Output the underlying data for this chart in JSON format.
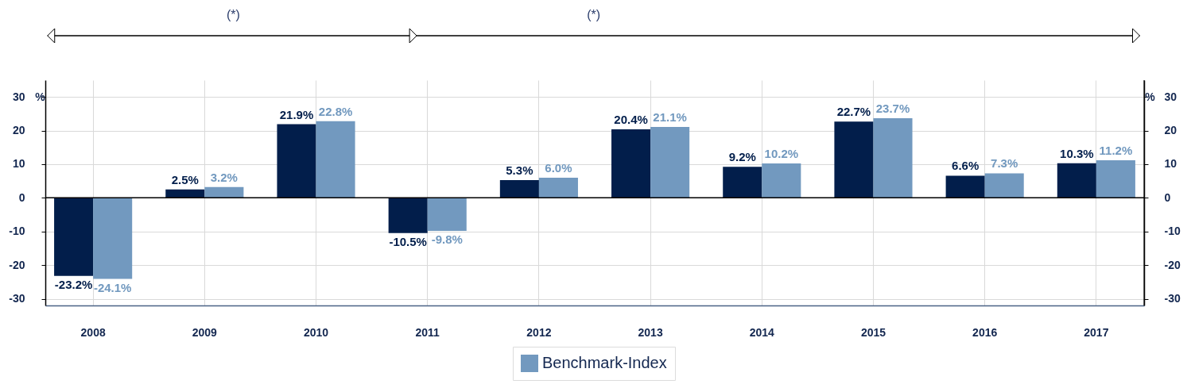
{
  "chart_data": {
    "type": "bar",
    "categories": [
      "2008",
      "2009",
      "2010",
      "2011",
      "2012",
      "2013",
      "2014",
      "2015",
      "2016",
      "2017"
    ],
    "series": [
      {
        "color": "#021e4b",
        "values": [
          -23.2,
          2.5,
          21.9,
          -10.5,
          5.3,
          20.4,
          9.2,
          22.7,
          6.6,
          10.3
        ],
        "value_labels": [
          "-23.2%",
          "2.5%",
          "21.9%",
          "-10.5%",
          "5.3%",
          "20.4%",
          "9.2%",
          "22.7%",
          "6.6%",
          "10.3%"
        ]
      },
      {
        "name": "Benchmark-Index",
        "color": "#7299bf",
        "values": [
          -24.1,
          3.2,
          22.8,
          -9.8,
          6.0,
          21.1,
          10.2,
          23.7,
          7.3,
          11.2
        ],
        "value_labels": [
          "-24.1%",
          "3.2%",
          "22.8%",
          "-9.8%",
          "6.0%",
          "21.1%",
          "10.2%",
          "23.7%",
          "7.3%",
          "11.2%"
        ]
      }
    ],
    "ylim": [
      -32,
      35
    ],
    "yticks": [
      -30,
      -20,
      -10,
      0,
      10,
      20,
      30
    ],
    "y2lim": [
      -32,
      35
    ],
    "y2ticks": [
      -30,
      -20,
      -10,
      0,
      10,
      20,
      30
    ],
    "ylabel": "%",
    "y2label": "%",
    "ref_lines": [
      {
        "axis": "y",
        "value": 0,
        "color": "#000000"
      }
    ],
    "annotations": [
      "(*)",
      "(*)"
    ],
    "grid": true,
    "legend": "bottom"
  }
}
